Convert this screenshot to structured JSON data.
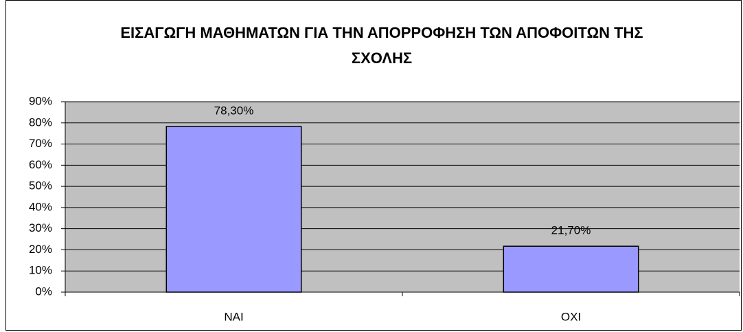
{
  "chart_data": {
    "type": "bar",
    "title": "ΕΙΣΑΓΩΓΗ ΜΑΘΗΜΑΤΩΝ ΓΙΑ ΤΗΝ ΑΠΟΡΡΟΦΗΣΗ ΤΩΝ ΑΠΟΦΟΙΤΩΝ ΤΗΣ ΣΧΟΛΗΣ",
    "categories": [
      "ΝΑΙ",
      "ΟΧΙ"
    ],
    "values": [
      78.3,
      21.7
    ],
    "value_labels": [
      "78,30%",
      "21,70%"
    ],
    "color": "#9999ff",
    "ylim": [
      0,
      90
    ],
    "yticks": [
      {
        "value": 0,
        "label": "0%"
      },
      {
        "value": 10,
        "label": "10%"
      },
      {
        "value": 20,
        "label": "20%"
      },
      {
        "value": 30,
        "label": "30%"
      },
      {
        "value": 40,
        "label": "40%"
      },
      {
        "value": 50,
        "label": "50%"
      },
      {
        "value": 60,
        "label": "60%"
      },
      {
        "value": 70,
        "label": "70%"
      },
      {
        "value": 80,
        "label": "80%"
      },
      {
        "value": 90,
        "label": "90%"
      }
    ],
    "grid": true
  }
}
